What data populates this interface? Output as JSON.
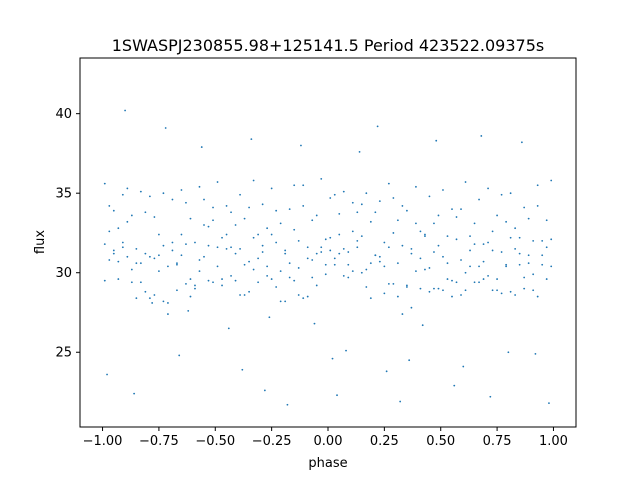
{
  "chart_data": {
    "type": "scatter",
    "title": "1SWASPJ230855.98+125141.5 Period 423522.09375s",
    "xlabel": "phase",
    "ylabel": "flux",
    "xlim": [
      -1.1,
      1.1
    ],
    "ylim": [
      20.3,
      43.5
    ],
    "x_ticks": [
      -1.0,
      -0.75,
      -0.5,
      -0.25,
      0.0,
      0.25,
      0.5,
      0.75,
      1.0
    ],
    "x_tick_labels": [
      "−1.00",
      "−0.75",
      "−0.50",
      "−0.25",
      "0.00",
      "0.25",
      "0.50",
      "0.75",
      "1.00"
    ],
    "y_ticks": [
      25,
      30,
      35,
      40
    ],
    "y_tick_labels": [
      "25",
      "30",
      "35",
      "40"
    ],
    "grid": false,
    "marker_color": "#1f77b4",
    "series": [
      {
        "name": "",
        "x": [
          -0.99,
          -0.97,
          -0.95,
          -0.93,
          -0.91,
          -0.89,
          -0.87,
          -0.85,
          -0.83,
          -0.81,
          -0.79,
          -0.77,
          -0.75,
          -0.73,
          -0.71,
          -0.69,
          -0.67,
          -0.65,
          -0.63,
          -0.61,
          -0.59,
          -0.57,
          -0.55,
          -0.53,
          -0.51,
          -0.49,
          -0.47,
          -0.45,
          -0.43,
          -0.41,
          -0.39,
          -0.37,
          -0.35,
          -0.33,
          -0.31,
          -0.29,
          -0.27,
          -0.25,
          -0.23,
          -0.21,
          -0.19,
          -0.17,
          -0.15,
          -0.13,
          -0.11,
          -0.09,
          -0.07,
          -0.05,
          -0.03,
          -0.01,
          0.01,
          0.03,
          0.05,
          0.07,
          0.09,
          0.11,
          0.13,
          0.15,
          0.17,
          0.19,
          0.21,
          0.23,
          0.25,
          0.27,
          0.29,
          0.31,
          0.33,
          0.35,
          0.37,
          0.39,
          0.41,
          0.43,
          0.45,
          0.47,
          0.49,
          0.51,
          0.53,
          0.55,
          0.57,
          0.59,
          0.61,
          0.63,
          0.65,
          0.67,
          0.69,
          0.71,
          0.73,
          0.75,
          0.77,
          0.79,
          0.81,
          0.83,
          0.85,
          0.87,
          0.89,
          0.91,
          0.93,
          0.95,
          0.97,
          0.99,
          -0.99,
          -0.97,
          -0.95,
          -0.93,
          -0.91,
          -0.89,
          -0.87,
          -0.85,
          -0.83,
          -0.81,
          -0.79,
          -0.77,
          -0.75,
          -0.73,
          -0.71,
          -0.69,
          -0.67,
          -0.65,
          -0.63,
          -0.61,
          -0.59,
          -0.57,
          -0.55,
          -0.53,
          -0.51,
          -0.49,
          -0.47,
          -0.45,
          -0.43,
          -0.41,
          -0.39,
          -0.37,
          -0.35,
          -0.33,
          -0.31,
          -0.29,
          -0.27,
          -0.25,
          -0.23,
          -0.21,
          -0.19,
          -0.17,
          -0.15,
          -0.13,
          -0.11,
          -0.09,
          -0.07,
          -0.05,
          -0.03,
          -0.01,
          0.01,
          0.03,
          0.05,
          0.07,
          0.09,
          0.11,
          0.13,
          0.15,
          0.17,
          0.19,
          0.21,
          0.23,
          0.25,
          0.27,
          0.29,
          0.31,
          0.33,
          0.35,
          0.37,
          0.39,
          0.41,
          0.43,
          0.45,
          0.47,
          0.49,
          0.51,
          0.53,
          0.55,
          0.57,
          0.59,
          0.61,
          0.63,
          0.65,
          0.67,
          0.69,
          0.71,
          0.73,
          0.75,
          0.77,
          0.79,
          0.81,
          0.83,
          0.85,
          0.87,
          0.89,
          0.91,
          0.93,
          0.95,
          0.97,
          0.99,
          -0.99,
          -0.97,
          -0.95,
          -0.93,
          -0.91,
          -0.89,
          -0.87,
          -0.85,
          -0.83,
          -0.81,
          -0.79,
          -0.77,
          -0.75,
          -0.73,
          -0.71,
          -0.69,
          -0.67,
          -0.65,
          -0.63,
          -0.61,
          -0.59,
          -0.57,
          -0.55,
          -0.53,
          -0.51,
          -0.49,
          -0.47,
          -0.45,
          -0.43,
          -0.41,
          -0.39,
          -0.37,
          -0.35,
          -0.33,
          -0.31,
          -0.29,
          -0.27,
          -0.25,
          -0.23,
          -0.21,
          -0.19,
          -0.17,
          -0.15,
          -0.13,
          -0.11,
          -0.09,
          -0.07,
          -0.05,
          -0.03,
          -0.01,
          0.01,
          0.03,
          0.05,
          0.07,
          0.09,
          0.11,
          0.13,
          0.15,
          0.17,
          0.19,
          0.21,
          0.23,
          0.25,
          0.27,
          0.29,
          0.31,
          0.33,
          0.35,
          0.37,
          0.39,
          0.41,
          0.43,
          0.45,
          0.47,
          0.49,
          0.51,
          0.53,
          0.55,
          0.57,
          0.59,
          0.61,
          0.63,
          0.65,
          0.67,
          0.69,
          0.71,
          0.73,
          0.75,
          0.77,
          0.79,
          0.81,
          0.83,
          0.85,
          0.87,
          0.89,
          0.91,
          0.93,
          0.95,
          0.97,
          0.99,
          -0.98,
          -0.9,
          -0.86,
          -0.78,
          -0.72,
          -0.66,
          -0.62,
          -0.56,
          -0.44,
          -0.38,
          -0.34,
          -0.28,
          -0.26,
          -0.18,
          -0.12,
          -0.06,
          0.02,
          0.04,
          0.08,
          0.14,
          0.22,
          0.26,
          0.32,
          0.36,
          0.42,
          0.48,
          0.56,
          0.6,
          0.68,
          0.72,
          0.8,
          0.86,
          0.92,
          0.98
        ],
        "y": [
          35.6,
          34.2,
          31.4,
          32.8,
          34.9,
          31.0,
          33.6,
          28.4,
          35.1,
          31.2,
          34.8,
          33.5,
          30.1,
          35.0,
          30.4,
          34.6,
          28.9,
          35.2,
          31.8,
          33.4,
          29.0,
          35.4,
          33.0,
          32.9,
          34.1,
          35.7,
          32.2,
          31.5,
          33.8,
          29.5,
          34.9,
          28.6,
          30.7,
          35.8,
          32.4,
          34.3,
          29.8,
          35.3,
          31.9,
          33.1,
          28.2,
          34.0,
          32.7,
          30.3,
          35.5,
          31.6,
          33.3,
          29.2,
          35.9,
          32.1,
          34.7,
          30.9,
          33.7,
          35.1,
          31.3,
          34.4,
          32.0,
          30.0,
          35.0,
          33.2,
          31.1,
          34.5,
          28.7,
          35.6,
          32.5,
          30.6,
          34.2,
          33.9,
          27.8,
          35.4,
          32.6,
          30.2,
          34.8,
          33.1,
          31.7,
          35.2,
          29.6,
          34.0,
          33.5,
          30.8,
          35.7,
          32.3,
          29.4,
          34.6,
          31.8,
          35.3,
          28.9,
          33.6,
          34.9,
          30.5,
          35.0,
          32.8,
          31.2,
          34.1,
          33.4,
          29.9,
          35.5,
          32.0,
          31.6,
          35.8,
          31.8,
          32.6,
          33.9,
          30.7,
          31.9,
          35.3,
          30.2,
          31.5,
          29.4,
          33.8,
          31.0,
          28.6,
          32.4,
          31.7,
          28.1,
          31.4,
          30.6,
          31.1,
          34.4,
          29.6,
          31.9,
          30.8,
          34.6,
          29.5,
          33.3,
          30.4,
          29.2,
          34.2,
          31.6,
          33.0,
          31.5,
          33.4,
          34.1,
          30.2,
          29.4,
          31.7,
          32.8,
          29.6,
          33.9,
          30.1,
          31.2,
          29.7,
          35.5,
          32.0,
          34.2,
          28.5,
          30.8,
          33.6,
          31.3,
          30.5,
          32.2,
          34.9,
          31.2,
          29.8,
          30.5,
          32.6,
          33.8,
          34.3,
          29.1,
          30.6,
          33.8,
          31.0,
          31.9,
          29.3,
          34.7,
          33.3,
          31.7,
          29.2,
          31.5,
          33.1,
          29.0,
          32.4,
          30.3,
          29.0,
          33.6,
          31.0,
          32.3,
          29.5,
          32.1,
          34.0,
          28.9,
          31.4,
          33.1,
          29.4,
          30.7,
          31.9,
          32.6,
          29.6,
          31.3,
          33.2,
          28.8,
          31.5,
          32.2,
          29.0,
          30.6,
          32.0,
          34.2,
          30.5,
          33.3,
          32.1,
          29.5,
          30.8,
          31.2,
          29.6,
          31.6,
          33.2,
          29.4,
          30.6,
          30.6,
          28.8,
          28.4,
          30.9,
          31.1,
          28.2,
          27.4,
          31.9,
          30.5,
          32.4,
          29.3,
          28.5,
          29.2,
          30.1,
          31.0,
          31.7,
          29.4,
          31.6,
          29.6,
          32.4,
          29.8,
          31.2,
          28.6,
          30.5,
          28.8,
          32.2,
          30.9,
          31.3,
          30.4,
          32.4,
          29.1,
          28.2,
          31.4,
          30.6,
          29.5,
          28.6,
          28.4,
          30.9,
          29.7,
          31.2,
          31.6,
          29.9,
          31.4,
          30.5,
          32.4,
          31.5,
          29.7,
          30.1,
          31.6,
          32.3,
          30.2,
          28.4,
          31.1,
          30.7,
          30.4,
          31.6,
          29.3,
          28.5,
          27.4,
          29.1,
          31.2,
          30.1,
          30.9,
          32.3,
          28.8,
          31.3,
          29.0,
          28.9,
          30.6,
          28.5,
          29.4,
          28.6,
          30.0,
          30.4,
          31.8,
          30.4,
          29.6,
          29.8,
          31.4,
          28.9,
          28.7,
          30.4,
          32.2,
          28.6,
          30.5,
          29.7,
          31.1,
          28.9,
          28.5,
          31.1,
          29.6,
          30.4,
          23.6,
          40.2,
          22.4,
          28.1,
          39.1,
          24.8,
          27.6,
          37.9,
          26.5,
          23.9,
          38.4,
          22.6,
          27.2,
          21.7,
          38.0,
          26.8,
          24.6,
          22.3,
          25.1,
          37.6,
          39.2,
          23.8,
          21.9,
          24.5,
          26.7,
          38.3,
          22.9,
          24.1,
          38.6,
          22.2,
          25.0,
          38.2,
          24.9,
          21.8
        ]
      }
    ]
  }
}
